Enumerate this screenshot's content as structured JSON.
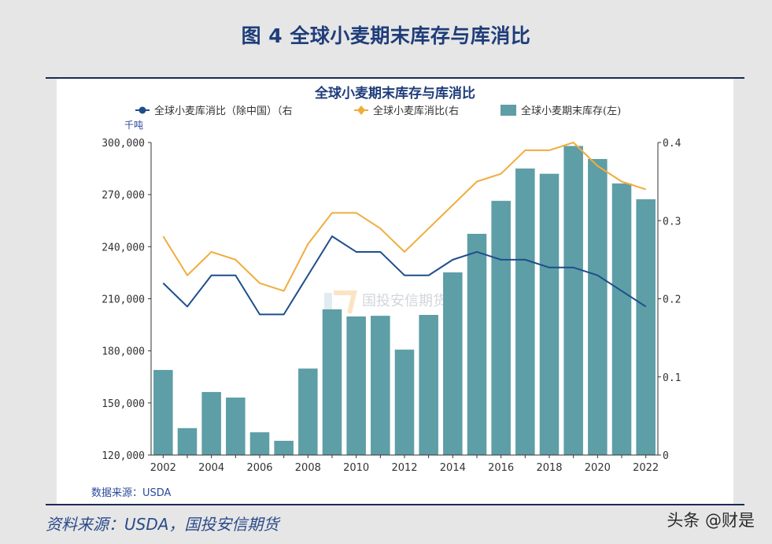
{
  "figure_title": "图 4 全球小麦期末库存与库消比",
  "footer": {
    "source": "资料来源：USDA，国投安信期货",
    "credit": "头条 @财是"
  },
  "watermark": "国投安信期货",
  "colors": {
    "bar": "#5e9ea6",
    "line_ex_china": "#1f4e8c",
    "line_global": "#f0ad3c",
    "title": "#1f3d7a",
    "rule": "#1b2b55"
  },
  "chart_data": {
    "type": "bar+line",
    "title": "全球小麦期末库存与库消比",
    "unit_label": "千吨",
    "source_note": "数据来源：USDA",
    "legend": [
      {
        "label": "全球小麦库消比（除中国）（右",
        "marker": "line-dot",
        "color": "#1f4e8c"
      },
      {
        "label": "全球小麦库消比(右",
        "marker": "line-diamond",
        "color": "#f0ad3c"
      },
      {
        "label": "全球小麦期末库存(左)",
        "marker": "square",
        "color": "#5e9ea6"
      }
    ],
    "legend_position": "top",
    "categories": [
      "2002",
      "2003",
      "2004",
      "2005",
      "2006",
      "2007",
      "2008",
      "2009",
      "2010",
      "2011",
      "2012",
      "2013",
      "2014",
      "2015",
      "2016",
      "2017",
      "2018",
      "2019",
      "2020",
      "2021",
      "2022"
    ],
    "x_tick_labels": [
      "2002",
      "2004",
      "2006",
      "2008",
      "2010",
      "2012",
      "2014",
      "2016",
      "2018",
      "2020",
      "2022"
    ],
    "y_left": {
      "range": [
        120000,
        300000
      ],
      "ticks": [
        120000,
        150000,
        180000,
        210000,
        240000,
        270000,
        300000
      ],
      "tick_labels": [
        "120,000",
        "150,000",
        "180,000",
        "210,000",
        "240,000",
        "270,000",
        "300,000"
      ]
    },
    "y_right": {
      "range": [
        0,
        0.4
      ],
      "ticks": [
        0,
        0.1,
        0.2,
        0.3,
        0.4
      ],
      "tick_labels": [
        "0",
        "0.1",
        "0.2",
        "0.3",
        "0.4"
      ]
    },
    "grid": false,
    "series": [
      {
        "name": "全球小麦期末库存(左)",
        "type": "bar",
        "axis": "left",
        "values": [
          169000,
          135500,
          156300,
          153100,
          133100,
          128200,
          169800,
          203900,
          199800,
          200200,
          180700,
          200700,
          225200,
          247400,
          266400,
          285000,
          282000,
          298000,
          290500,
          276400,
          267300
        ]
      },
      {
        "name": "全球小麦库消比（除中国）（右）",
        "type": "line",
        "axis": "right",
        "values": [
          0.22,
          0.19,
          0.23,
          0.23,
          0.18,
          0.18,
          0.23,
          0.28,
          0.26,
          0.26,
          0.23,
          0.23,
          0.25,
          0.26,
          0.25,
          0.25,
          0.24,
          0.24,
          0.23,
          0.21,
          0.19
        ]
      },
      {
        "name": "全球小麦库消比(右)",
        "type": "line",
        "axis": "right",
        "values": [
          0.28,
          0.23,
          0.26,
          0.25,
          0.22,
          0.21,
          0.27,
          0.31,
          0.31,
          0.29,
          0.26,
          0.29,
          0.32,
          0.35,
          0.36,
          0.39,
          0.39,
          0.4,
          0.37,
          0.35,
          0.34
        ]
      }
    ]
  }
}
